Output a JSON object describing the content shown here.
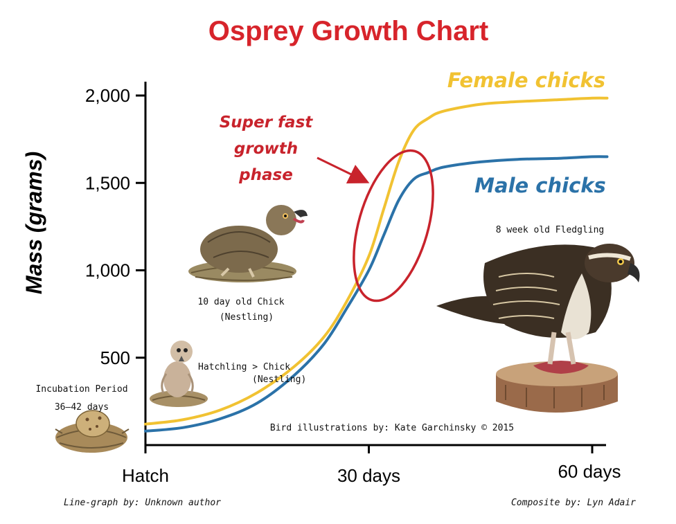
{
  "colors": {
    "title": "#d7242b",
    "female": "#f1c232",
    "male": "#2b72a8",
    "annotation": "#c8232c",
    "axis": "#000000"
  },
  "chart_data": {
    "type": "line",
    "title": "Osprey Growth Chart",
    "ylabel": "Mass (grams)",
    "xlabel": "",
    "ylim": [
      0,
      2000
    ],
    "xlim": [
      0,
      62
    ],
    "y_ticks": [
      {
        "value": 500,
        "label": "500"
      },
      {
        "value": 1000,
        "label": "1,000"
      },
      {
        "value": 1500,
        "label": "1,500"
      },
      {
        "value": 2000,
        "label": "2,000"
      }
    ],
    "x_ticks": [
      {
        "value": 0,
        "label": "Hatch"
      },
      {
        "value": 30,
        "label": "30 days"
      },
      {
        "value": 60,
        "label": "60 days"
      }
    ],
    "grid": false,
    "series": [
      {
        "name": "Female chicks",
        "color": "#f1c232",
        "x": [
          0,
          5,
          10,
          15,
          20,
          24,
          27,
          30,
          32,
          34,
          36,
          38,
          40,
          45,
          50,
          55,
          60,
          62
        ],
        "y": [
          120,
          145,
          200,
          300,
          450,
          620,
          820,
          1080,
          1350,
          1620,
          1800,
          1870,
          1910,
          1950,
          1965,
          1975,
          1985,
          1985
        ]
      },
      {
        "name": "Male chicks",
        "color": "#2b72a8",
        "x": [
          0,
          5,
          10,
          15,
          20,
          24,
          27,
          30,
          32,
          34,
          36,
          38,
          40,
          45,
          50,
          55,
          60,
          62
        ],
        "y": [
          80,
          100,
          150,
          240,
          400,
          580,
          780,
          1000,
          1200,
          1400,
          1520,
          1560,
          1590,
          1620,
          1635,
          1640,
          1650,
          1650
        ]
      }
    ],
    "annotations": [
      {
        "text": [
          "Super fast",
          "growth",
          "phase"
        ],
        "target_x": 31.5,
        "target_y": 1350
      }
    ]
  },
  "captions": {
    "incubation": [
      "Incubation Period",
      "36–42 days"
    ],
    "hatchling": [
      "Hatchling > Chick",
      "(Nestling)"
    ],
    "ten_day": [
      "10 day old Chick",
      "(Nestling)"
    ],
    "fledgling": "8 week old Fledgling",
    "illustrations_credit": "Bird illustrations by: Kate Garchinsky © 2015"
  },
  "footer": {
    "left": "Line-graph by: Unknown author",
    "right": "Composite by: Lyn Adair"
  },
  "illustrations": [
    "egg-in-nest",
    "hatchling-chick",
    "ten-day-chick",
    "fledgling-osprey"
  ]
}
